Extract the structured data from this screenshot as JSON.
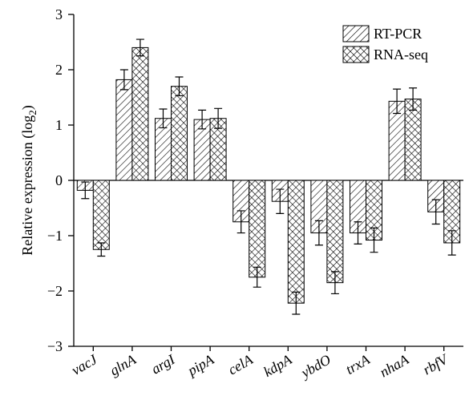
{
  "chart_data": {
    "type": "bar",
    "ylabel": {
      "text": "Relative expression (log",
      "sub": "2",
      "suffix": ")"
    },
    "categories": [
      "vacJ",
      "glnA",
      "argI",
      "pipA",
      "celA",
      "kdpA",
      "ybdO",
      "trxA",
      "nhaA",
      "rbfV"
    ],
    "series": [
      {
        "name": "RT-PCR",
        "color": "#000000",
        "pattern": "diagonal",
        "values": [
          -0.18,
          1.82,
          1.12,
          1.1,
          -0.75,
          -0.38,
          -0.95,
          -0.95,
          1.43,
          -0.57
        ],
        "errors": [
          0.15,
          0.18,
          0.17,
          0.17,
          0.2,
          0.22,
          0.22,
          0.2,
          0.22,
          0.22
        ]
      },
      {
        "name": "RNA-seq",
        "color": "#000000",
        "pattern": "crosshatch",
        "values": [
          -1.25,
          2.4,
          1.7,
          1.12,
          -1.75,
          -2.22,
          -1.85,
          -1.08,
          1.47,
          -1.13
        ],
        "errors": [
          0.12,
          0.15,
          0.17,
          0.18,
          0.18,
          0.2,
          0.2,
          0.22,
          0.2,
          0.22
        ]
      }
    ],
    "ylim": [
      -3,
      3
    ],
    "yticks": [
      {
        "value": -3,
        "label": "−3"
      },
      {
        "value": -2,
        "label": "−2"
      },
      {
        "value": -1,
        "label": "−1"
      },
      0,
      1,
      2,
      3
    ],
    "zero_line": true,
    "legend": "top-right"
  }
}
